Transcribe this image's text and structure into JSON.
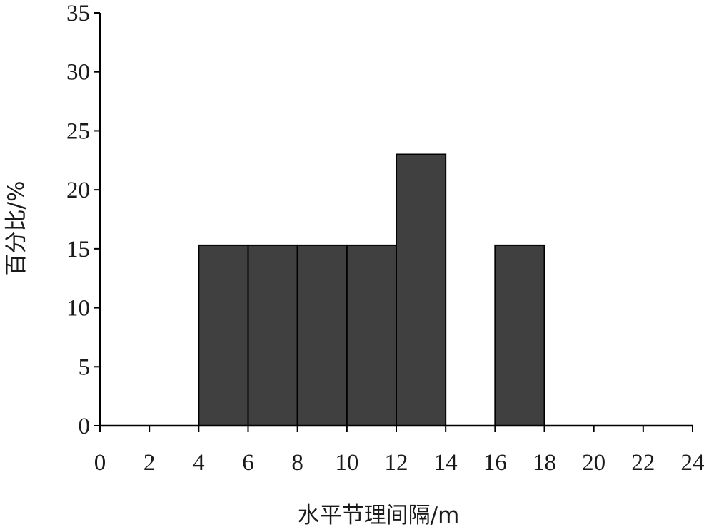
{
  "chart_data": {
    "type": "bar",
    "title": "",
    "xlabel": "水平节理间隔/m",
    "ylabel": "百分比/%",
    "xlim": [
      0,
      24
    ],
    "ylim": [
      0,
      35
    ],
    "x_ticks": [
      "0",
      "2",
      "4",
      "6",
      "8",
      "10",
      "12",
      "14",
      "16",
      "18",
      "20",
      "22",
      "24"
    ],
    "y_ticks": [
      "0",
      "5",
      "10",
      "15",
      "20",
      "25",
      "30",
      "35"
    ],
    "bins": [
      {
        "x0": 0,
        "x1": 2,
        "value": 0
      },
      {
        "x0": 2,
        "x1": 4,
        "value": 0
      },
      {
        "x0": 4,
        "x1": 6,
        "value": 15.3
      },
      {
        "x0": 6,
        "x1": 8,
        "value": 15.3
      },
      {
        "x0": 8,
        "x1": 10,
        "value": 15.3
      },
      {
        "x0": 10,
        "x1": 12,
        "value": 15.3
      },
      {
        "x0": 12,
        "x1": 14,
        "value": 23
      },
      {
        "x0": 14,
        "x1": 16,
        "value": 0
      },
      {
        "x0": 16,
        "x1": 18,
        "value": 15.3
      },
      {
        "x0": 18,
        "x1": 20,
        "value": 0
      },
      {
        "x0": 20,
        "x1": 22,
        "value": 0
      },
      {
        "x0": 22,
        "x1": 24,
        "value": 0
      }
    ],
    "bar_color": "#404040",
    "bar_edge_color": "#000000",
    "grid": false,
    "legend": "none"
  }
}
